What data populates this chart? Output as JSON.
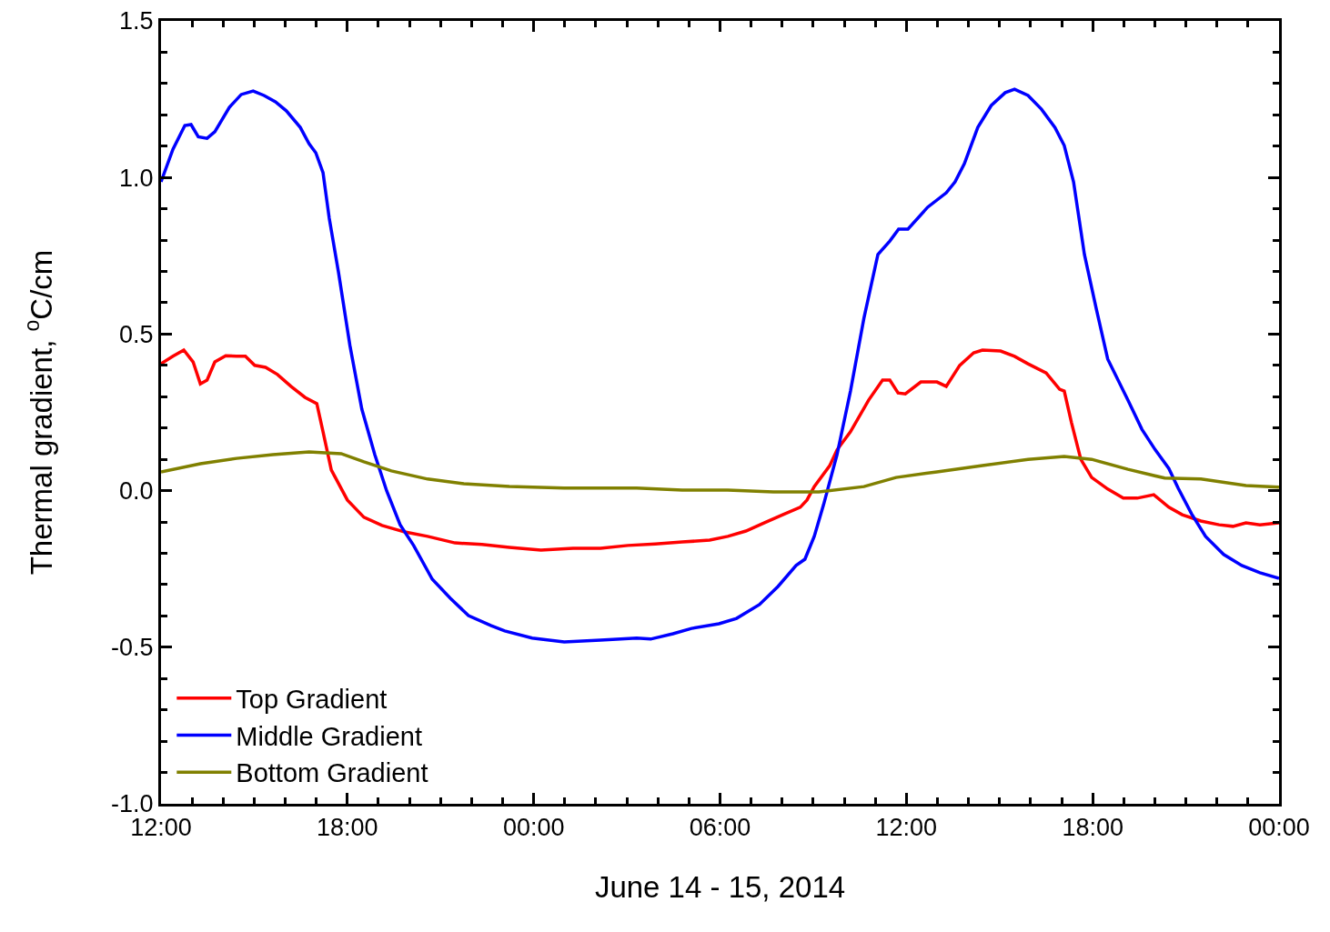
{
  "chart_data": {
    "type": "line",
    "xlabel": "June 14 - 15, 2014",
    "ylabel": "Thermal gradient, $^{o}$C/cm",
    "xlim": [
      "2014-06-14T12:00",
      "2014-06-16T00:00"
    ],
    "xticks": [
      {
        "value": "2014-06-14T12:00",
        "label": "12:00"
      },
      {
        "value": "2014-06-14T18:00",
        "label": "18:00"
      },
      {
        "value": "2014-06-15T00:00",
        "label": "00:00"
      },
      {
        "value": "2014-06-15T06:00",
        "label": "06:00"
      },
      {
        "value": "2014-06-15T12:00",
        "label": "12:00"
      },
      {
        "value": "2014-06-15T18:00",
        "label": "18:00"
      },
      {
        "value": "2014-06-16T00:00",
        "label": "00:00"
      }
    ],
    "ylim": [
      -1.0,
      1.5
    ],
    "yticks": [
      {
        "value": -1.0,
        "label": "-1.0"
      },
      {
        "value": -0.5,
        "label": "-0.5"
      },
      {
        "value": 0,
        "label": "0.0"
      },
      {
        "value": 0.5,
        "label": "0.5"
      },
      {
        "value": 1.0,
        "label": "1.0"
      },
      {
        "value": 1.5,
        "label": "1.5"
      }
    ],
    "grid": false,
    "legend": "bottom left",
    "marker": "none",
    "line_style": "solid",
    "series": [
      {
        "name": "Top Gradient",
        "color": "#ff0000",
        "x": [
          "2014-06-14T12:00",
          "2014-06-14T12:23",
          "2014-06-14T12:44",
          "2014-06-14T13:02",
          "2014-06-14T13:16",
          "2014-06-14T13:29",
          "2014-06-14T13:44",
          "2014-06-14T14:05",
          "2014-06-14T14:26",
          "2014-06-14T14:43",
          "2014-06-14T15:01",
          "2014-06-14T15:22",
          "2014-06-14T15:45",
          "2014-06-14T16:11",
          "2014-06-14T16:38",
          "2014-06-14T17:01",
          "2014-06-14T17:13",
          "2014-06-14T17:29",
          "2014-06-14T18:00",
          "2014-06-14T18:32",
          "2014-06-14T19:07",
          "2014-06-14T19:51",
          "2014-06-14T20:35",
          "2014-06-14T21:28",
          "2014-06-14T22:20",
          "2014-06-14T23:13",
          "2014-06-15T00:14",
          "2014-06-15T01:16",
          "2014-06-15T02:09",
          "2014-06-15T03:02",
          "2014-06-15T03:55",
          "2014-06-15T04:47",
          "2014-06-15T05:40",
          "2014-06-15T06:15",
          "2014-06-15T06:50",
          "2014-06-15T07:25",
          "2014-06-15T08:01",
          "2014-06-15T08:35",
          "2014-06-15T08:48",
          "2014-06-15T09:02",
          "2014-06-15T09:32",
          "2014-06-15T09:46",
          "2014-06-15T10:12",
          "2014-06-15T10:47",
          "2014-06-15T11:14",
          "2014-06-15T11:28",
          "2014-06-15T11:44",
          "2014-06-15T11:58",
          "2014-06-15T12:28",
          "2014-06-15T12:59",
          "2014-06-15T13:17",
          "2014-06-15T13:43",
          "2014-06-15T14:10",
          "2014-06-15T14:27",
          "2014-06-15T15:02",
          "2014-06-15T15:29",
          "2014-06-15T15:55",
          "2014-06-15T16:30",
          "2014-06-15T16:56",
          "2014-06-15T17:05",
          "2014-06-15T17:19",
          "2014-06-15T17:37",
          "2014-06-15T17:58",
          "2014-06-15T18:29",
          "2014-06-15T18:59",
          "2014-06-15T19:26",
          "2014-06-15T19:58",
          "2014-06-15T20:27",
          "2014-06-15T20:53",
          "2014-06-15T21:29",
          "2014-06-15T22:04",
          "2014-06-15T22:31",
          "2014-06-15T22:56",
          "2014-06-15T23:23",
          "2014-06-16T00:00"
        ],
        "values": [
          0.405,
          0.429,
          0.449,
          0.411,
          0.341,
          0.353,
          0.411,
          0.431,
          0.429,
          0.429,
          0.4,
          0.394,
          0.371,
          0.333,
          0.298,
          0.278,
          0.188,
          0.066,
          -0.03,
          -0.085,
          -0.111,
          -0.132,
          -0.146,
          -0.167,
          -0.172,
          -0.181,
          -0.19,
          -0.184,
          -0.184,
          -0.175,
          -0.17,
          -0.164,
          -0.158,
          -0.146,
          -0.129,
          -0.103,
          -0.077,
          -0.053,
          -0.03,
          0.013,
          0.08,
          0.13,
          0.188,
          0.289,
          0.353,
          0.353,
          0.312,
          0.309,
          0.347,
          0.347,
          0.333,
          0.4,
          0.44,
          0.449,
          0.446,
          0.429,
          0.405,
          0.376,
          0.324,
          0.318,
          0.217,
          0.1,
          0.042,
          0.005,
          -0.024,
          -0.024,
          -0.013,
          -0.053,
          -0.077,
          -0.097,
          -0.109,
          -0.114,
          -0.103,
          -0.109,
          -0.103
        ]
      },
      {
        "name": "Middle Gradient",
        "color": "#0000ff",
        "x": [
          "2014-06-14T12:00",
          "2014-06-14T12:23",
          "2014-06-14T12:46",
          "2014-06-14T12:58",
          "2014-06-14T13:12",
          "2014-06-14T13:29",
          "2014-06-14T13:44",
          "2014-06-14T14:12",
          "2014-06-14T14:35",
          "2014-06-14T14:58",
          "2014-06-14T15:19",
          "2014-06-14T15:41",
          "2014-06-14T16:02",
          "2014-06-14T16:29",
          "2014-06-14T16:46",
          "2014-06-14T16:59",
          "2014-06-14T17:13",
          "2014-06-14T17:25",
          "2014-06-14T17:43",
          "2014-06-14T18:05",
          "2014-06-14T18:28",
          "2014-06-14T18:53",
          "2014-06-14T19:16",
          "2014-06-14T19:42",
          "2014-06-14T20:08",
          "2014-06-14T20:44",
          "2014-06-14T21:19",
          "2014-06-14T21:54",
          "2014-06-14T22:38",
          "2014-06-14T23:04",
          "2014-06-14T23:57",
          "2014-06-15T00:59",
          "2014-06-15T02:09",
          "2014-06-15T03:19",
          "2014-06-15T03:46",
          "2014-06-15T04:29",
          "2014-06-15T05:05",
          "2014-06-15T05:58",
          "2014-06-15T06:32",
          "2014-06-15T07:16",
          "2014-06-15T07:52",
          "2014-06-15T08:27",
          "2014-06-15T08:44",
          "2014-06-15T09:02",
          "2014-06-15T09:20",
          "2014-06-15T09:46",
          "2014-06-15T10:12",
          "2014-06-15T10:38",
          "2014-06-15T11:05",
          "2014-06-15T11:28",
          "2014-06-15T11:45",
          "2014-06-15T12:03",
          "2014-06-15T12:41",
          "2014-06-15T13:17",
          "2014-06-15T13:34",
          "2014-06-15T13:52",
          "2014-06-15T14:18",
          "2014-06-15T14:44",
          "2014-06-15T15:11",
          "2014-06-15T15:29",
          "2014-06-15T15:55",
          "2014-06-15T16:21",
          "2014-06-15T16:47",
          "2014-06-15T17:05",
          "2014-06-15T17:23",
          "2014-06-15T17:44",
          "2014-06-15T18:07",
          "2014-06-15T18:29",
          "2014-06-15T19:08",
          "2014-06-15T19:35",
          "2014-06-15T20:01",
          "2014-06-15T20:27",
          "2014-06-15T20:45",
          "2014-06-15T21:11",
          "2014-06-15T21:38",
          "2014-06-15T22:13",
          "2014-06-15T22:48",
          "2014-06-15T23:23",
          "2014-06-16T00:00"
        ],
        "values": [
          0.986,
          1.09,
          1.166,
          1.169,
          1.13,
          1.125,
          1.146,
          1.224,
          1.265,
          1.276,
          1.262,
          1.242,
          1.213,
          1.16,
          1.108,
          1.079,
          1.015,
          0.87,
          0.696,
          0.463,
          0.26,
          0.115,
          -0.001,
          -0.109,
          -0.175,
          -0.283,
          -0.344,
          -0.399,
          -0.431,
          -0.448,
          -0.471,
          -0.483,
          -0.477,
          -0.471,
          -0.474,
          -0.457,
          -0.44,
          -0.425,
          -0.408,
          -0.364,
          -0.306,
          -0.239,
          -0.219,
          -0.146,
          -0.045,
          0.115,
          0.318,
          0.551,
          0.754,
          0.797,
          0.835,
          0.835,
          0.905,
          0.951,
          0.986,
          1.044,
          1.16,
          1.23,
          1.271,
          1.282,
          1.262,
          1.218,
          1.16,
          1.102,
          0.986,
          0.754,
          0.58,
          0.42,
          0.289,
          0.196,
          0.13,
          0.071,
          0.008,
          -0.074,
          -0.146,
          -0.204,
          -0.239,
          -0.262,
          -0.28
        ]
      },
      {
        "name": "Bottom Gradient",
        "color": "#808000",
        "x": [
          "2014-06-14T12:00",
          "2014-06-14T13:16",
          "2014-06-14T14:26",
          "2014-06-14T15:36",
          "2014-06-14T16:46",
          "2014-06-14T17:48",
          "2014-06-14T18:32",
          "2014-06-14T19:25",
          "2014-06-14T20:35",
          "2014-06-14T21:45",
          "2014-06-14T23:13",
          "2014-06-15T00:59",
          "2014-06-15T03:19",
          "2014-06-15T04:47",
          "2014-06-15T06:15",
          "2014-06-15T07:43",
          "2014-06-15T09:11",
          "2014-06-15T10:38",
          "2014-06-15T11:40",
          "2014-06-15T12:59",
          "2014-06-15T14:27",
          "2014-06-15T15:55",
          "2014-06-15T17:05",
          "2014-06-15T17:58",
          "2014-06-15T19:08",
          "2014-06-15T20:19",
          "2014-06-15T21:29",
          "2014-06-15T22:56",
          "2014-06-16T00:00"
        ],
        "values": [
          0.06,
          0.086,
          0.103,
          0.115,
          0.124,
          0.118,
          0.092,
          0.063,
          0.037,
          0.022,
          0.013,
          0.008,
          0.008,
          0.002,
          0.002,
          -0.004,
          -0.004,
          0.013,
          0.042,
          0.06,
          0.08,
          0.1,
          0.109,
          0.1,
          0.068,
          0.04,
          0.037,
          0.016,
          0.011
        ]
      }
    ]
  }
}
